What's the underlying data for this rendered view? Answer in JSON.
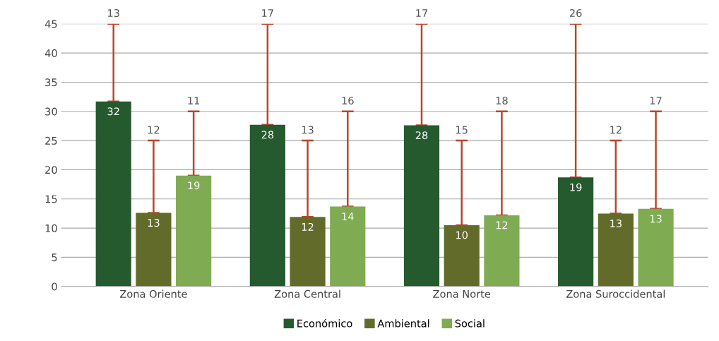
{
  "chart_data": {
    "type": "bar",
    "categories": [
      "Zona Oriente",
      "Zona Central",
      "Zona Norte",
      "Zona Suroccidental"
    ],
    "series": [
      {
        "name": "Económico",
        "color": "#245a2e",
        "values": [
          31.7,
          27.7,
          27.6,
          18.7
        ],
        "value_labels": [
          "32",
          "28",
          "28",
          "19"
        ],
        "errors": [
          [
            31.7,
            45
          ],
          [
            27.7,
            45
          ],
          [
            27.6,
            45
          ],
          [
            18.7,
            45
          ]
        ]
      },
      {
        "name": "Ambiental",
        "color": "#636b2a",
        "values": [
          12.6,
          11.9,
          10.5,
          12.5
        ],
        "value_labels": [
          "13",
          "12",
          "10",
          "13"
        ],
        "errors": [
          [
            12.6,
            25
          ],
          [
            11.9,
            25
          ],
          [
            10.5,
            25
          ],
          [
            12.5,
            25
          ]
        ]
      },
      {
        "name": "Social",
        "color": "#7fab52",
        "values": [
          19,
          13.7,
          12.2,
          13.3
        ],
        "value_labels": [
          "19",
          "14",
          "12",
          "13"
        ],
        "errors": [
          [
            19,
            30
          ],
          [
            13.7,
            30
          ],
          [
            12.2,
            30
          ],
          [
            13.3,
            30
          ]
        ]
      }
    ],
    "annotations": [
      "13",
      "12",
      "11",
      "17",
      "13",
      "16",
      "17",
      "15",
      "18",
      "26",
      "12",
      "17"
    ],
    "ylim": [
      0,
      45
    ],
    "yticks": [
      0,
      5,
      10,
      15,
      20,
      25,
      30,
      35,
      40,
      45
    ],
    "grid": "y",
    "legend": "bottom"
  }
}
